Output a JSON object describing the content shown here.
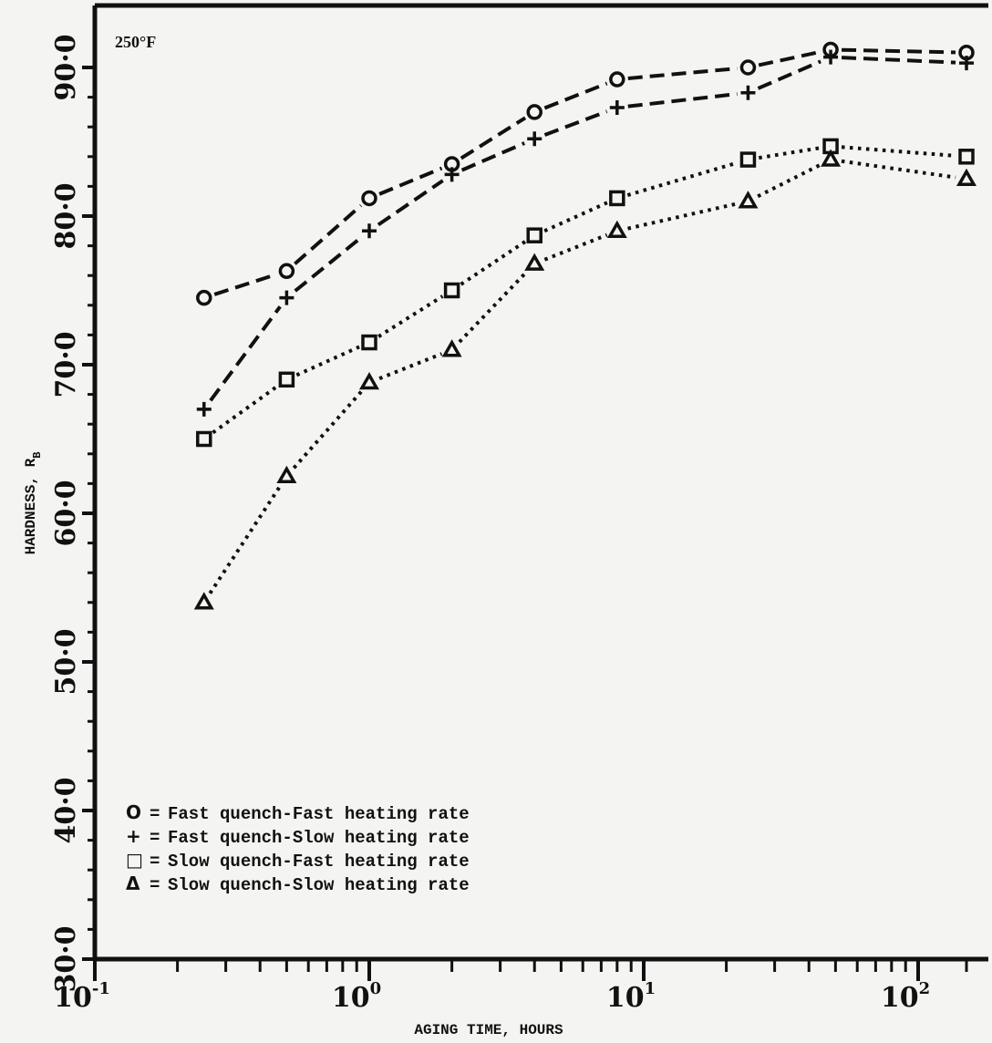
{
  "chart_data": {
    "type": "line",
    "annotation": "250°F",
    "xlabel": "AGING TIME, HOURS",
    "ylabel": "HARDNESS, R",
    "ylabel_sub": "B",
    "xscale": "log",
    "xlim": [
      0.1,
      150
    ],
    "ylim": [
      30,
      95
    ],
    "x_ticks": [
      {
        "base": "10",
        "exp": "-1"
      },
      {
        "base": "10",
        "exp": "0"
      },
      {
        "base": "10",
        "exp": "1"
      },
      {
        "base": "10",
        "exp": "2"
      }
    ],
    "y_ticks": [
      "30·0",
      "40·0",
      "50·0",
      "60·0",
      "70·0",
      "80·0",
      "90·0"
    ],
    "x": [
      0.25,
      0.5,
      1,
      2,
      4,
      8,
      24,
      48,
      150
    ],
    "series": [
      {
        "name": "Fast quench-Fast heating rate",
        "marker": "circle",
        "line": "dashed",
        "values": [
          74.5,
          76.3,
          81.2,
          83.5,
          87.0,
          89.2,
          90.0,
          91.2,
          91.0
        ]
      },
      {
        "name": "Fast quench-Slow heating rate",
        "marker": "plus",
        "line": "dashed",
        "values": [
          67.0,
          74.5,
          79.0,
          82.8,
          85.2,
          87.3,
          88.3,
          90.7,
          90.3
        ]
      },
      {
        "name": "Slow quench-Fast heating rate",
        "marker": "square",
        "line": "dotted",
        "values": [
          65.0,
          69.0,
          71.5,
          75.0,
          78.7,
          81.2,
          83.8,
          84.7,
          84.0
        ]
      },
      {
        "name": "Slow quench-Slow heating rate",
        "marker": "triangle",
        "line": "dotted",
        "values": [
          54.0,
          62.5,
          68.8,
          71.0,
          76.8,
          79.0,
          81.0,
          83.8,
          82.5
        ]
      }
    ],
    "legend": {
      "placement": "bottom-left",
      "entries": [
        {
          "symbol": "O",
          "sep": "=",
          "text": "Fast quench-Fast heating rate"
        },
        {
          "symbol": "+",
          "sep": "=",
          "text": "Fast quench-Slow heating rate"
        },
        {
          "symbol": "□",
          "sep": "=",
          "text": "Slow quench-Fast heating rate"
        },
        {
          "symbol": "Δ",
          "sep": "=",
          "text": "Slow quench-Slow heating rate"
        }
      ]
    },
    "grid": false,
    "colors": {
      "ink": "#111111",
      "paper": "#f4f4f2"
    }
  }
}
